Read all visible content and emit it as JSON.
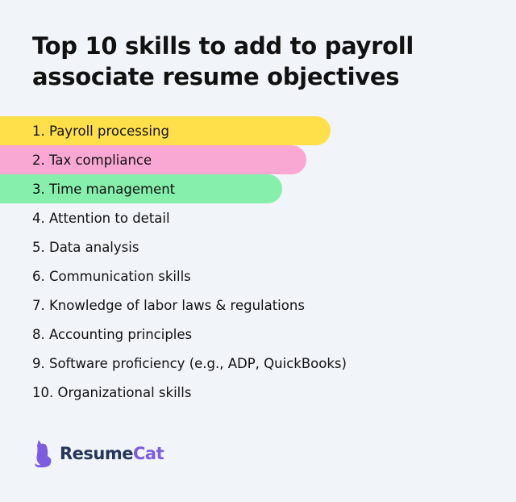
{
  "title": "Top 10 skills to add to payroll associate resume objectives",
  "skills": [
    {
      "label": "1. Payroll processing",
      "highlight": "#ffe04a"
    },
    {
      "label": "2. Tax compliance",
      "highlight": "#f9a8d4"
    },
    {
      "label": "3. Time management",
      "highlight": "#86efac"
    },
    {
      "label": "4. Attention to detail"
    },
    {
      "label": "5. Data analysis"
    },
    {
      "label": "6. Communication skills"
    },
    {
      "label": "7. Knowledge of labor laws & regulations"
    },
    {
      "label": "8. Accounting principles"
    },
    {
      "label": "9. Software proficiency (e.g., ADP, QuickBooks)"
    },
    {
      "label": "10. Organizational skills"
    }
  ],
  "logo": {
    "part1": "Resume",
    "part2": "Cat",
    "icon": "cat-icon"
  }
}
